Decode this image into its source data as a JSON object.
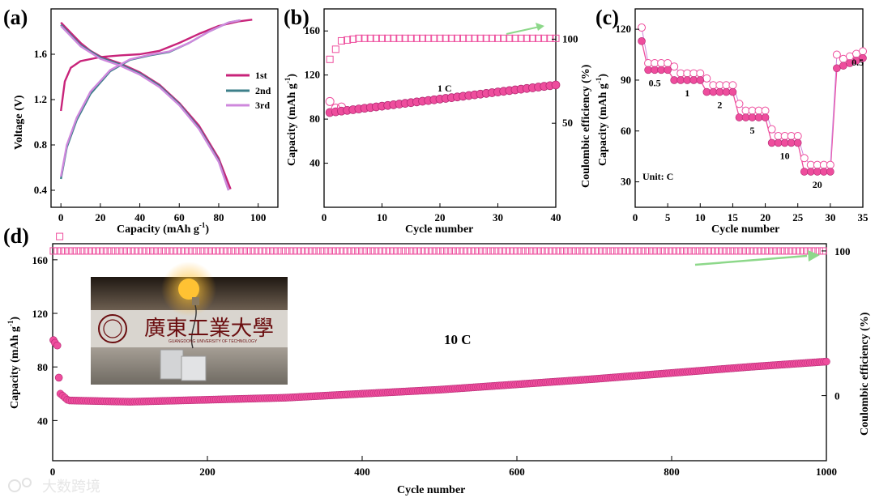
{
  "panels": {
    "a": {
      "letter": "(a)",
      "xlabel": "Capacity (mAh g",
      "xlabel_sup": "-1",
      "xlabel_end": ")",
      "ylabel": "Voltage (V)"
    },
    "b": {
      "letter": "(b)",
      "xlabel": "Cycle number",
      "ylabel": "Capacity (mAh g",
      "ylabel_sup": "-1",
      "ylabel_end": ")",
      "y2label": "Coulombic efficiency (%)",
      "rate_label": "1 C"
    },
    "c": {
      "letter": "(c)",
      "xlabel": "Cycle number",
      "ylabel": "Capacity (mAh g",
      "ylabel_sup": "-1",
      "ylabel_end": ")",
      "unit_label": "Unit: C"
    },
    "d": {
      "letter": "(d)",
      "xlabel": "Cycle number",
      "ylabel": "Capacity (mAh g",
      "ylabel_sup": "-1",
      "ylabel_end": ")",
      "y2label": "Coulombic efficiency (%)",
      "rate_label": "10 C",
      "photo": {
        "school_cn": "廣東工業大學",
        "school_en": "GUANGDONG UNIVERSITY OF TECHNOLOGY"
      }
    }
  },
  "watermark": "大数跨境",
  "colors": {
    "pink": "#ee4d9d",
    "pink_dark": "#b0256f",
    "magenta": "#c8237a",
    "teal": "#3d7f8a",
    "violet": "#cf88dd",
    "green": "#8dd88a"
  },
  "chart_data": [
    {
      "id": "a",
      "type": "line",
      "xlabel": "Capacity (mAh g-1)",
      "ylabel": "Voltage (V)",
      "xlim": [
        -5,
        110
      ],
      "ylim": [
        0.25,
        2.0
      ],
      "xticks": [
        0,
        20,
        40,
        60,
        80,
        100
      ],
      "yticks": [
        0.4,
        0.8,
        1.2,
        1.6
      ],
      "legend": [
        "1st",
        "2nd",
        "3rd"
      ],
      "legend_position": "right",
      "series": [
        {
          "name": "1st",
          "color": "#c8237a",
          "discharge": [
            [
              0,
              1.88
            ],
            [
              5,
              1.79
            ],
            [
              10,
              1.7
            ],
            [
              15,
              1.63
            ],
            [
              20,
              1.58
            ],
            [
              30,
              1.52
            ],
            [
              40,
              1.44
            ],
            [
              50,
              1.33
            ],
            [
              60,
              1.17
            ],
            [
              70,
              0.97
            ],
            [
              80,
              0.68
            ],
            [
              86,
              0.41
            ]
          ],
          "charge": [
            [
              0,
              1.1
            ],
            [
              2,
              1.36
            ],
            [
              5,
              1.48
            ],
            [
              10,
              1.54
            ],
            [
              20,
              1.575
            ],
            [
              30,
              1.59
            ],
            [
              40,
              1.6
            ],
            [
              50,
              1.63
            ],
            [
              60,
              1.7
            ],
            [
              70,
              1.78
            ],
            [
              80,
              1.85
            ],
            [
              90,
              1.89
            ],
            [
              97,
              1.905
            ]
          ]
        },
        {
          "name": "2nd",
          "color": "#3d7f8a",
          "discharge": [
            [
              0,
              1.86
            ],
            [
              5,
              1.77
            ],
            [
              10,
              1.68
            ],
            [
              20,
              1.57
            ],
            [
              30,
              1.51
            ],
            [
              40,
              1.43
            ],
            [
              50,
              1.32
            ],
            [
              60,
              1.16
            ],
            [
              70,
              0.95
            ],
            [
              80,
              0.66
            ],
            [
              85,
              0.4
            ]
          ],
          "charge": [
            [
              0,
              0.5
            ],
            [
              3,
              0.78
            ],
            [
              8,
              1.02
            ],
            [
              15,
              1.25
            ],
            [
              25,
              1.45
            ],
            [
              35,
              1.55
            ],
            [
              45,
              1.59
            ],
            [
              55,
              1.62
            ],
            [
              65,
              1.7
            ],
            [
              75,
              1.8
            ],
            [
              85,
              1.88
            ],
            [
              91,
              1.9
            ]
          ]
        },
        {
          "name": "3rd",
          "color": "#cf88dd",
          "discharge": [
            [
              0,
              1.85
            ],
            [
              5,
              1.76
            ],
            [
              10,
              1.67
            ],
            [
              20,
              1.56
            ],
            [
              30,
              1.5
            ],
            [
              40,
              1.42
            ],
            [
              50,
              1.31
            ],
            [
              60,
              1.15
            ],
            [
              70,
              0.94
            ],
            [
              80,
              0.65
            ],
            [
              85,
              0.4
            ]
          ],
          "charge": [
            [
              0,
              0.52
            ],
            [
              3,
              0.8
            ],
            [
              8,
              1.04
            ],
            [
              15,
              1.27
            ],
            [
              25,
              1.46
            ],
            [
              35,
              1.555
            ],
            [
              45,
              1.595
            ],
            [
              55,
              1.625
            ],
            [
              65,
              1.7
            ],
            [
              75,
              1.8
            ],
            [
              85,
              1.88
            ],
            [
              91,
              1.9
            ]
          ]
        }
      ]
    },
    {
      "id": "b",
      "type": "scatter",
      "xlabel": "Cycle number",
      "ylabel": "Capacity (mAh g-1)",
      "y2label": "Coulombic efficiency (%)",
      "xlim": [
        0,
        40
      ],
      "ylim": [
        0,
        180
      ],
      "y2lim": [
        0,
        118
      ],
      "xticks": [
        0,
        10,
        20,
        30,
        40
      ],
      "yticks": [
        40,
        80,
        120,
        160
      ],
      "y2ticks": [
        50,
        100
      ],
      "annotation": "1 C",
      "series": [
        {
          "name": "Capacity",
          "marker": "filled-circle",
          "x_start": 1,
          "x_end": 40,
          "y_start": 86,
          "y_end": 111,
          "first_open": 96
        },
        {
          "name": "Coulombic efficiency",
          "marker": "open-square",
          "x_start": 1,
          "x_end": 40,
          "first": 88,
          "second": 94,
          "plateau": 100.5
        }
      ]
    },
    {
      "id": "c",
      "type": "scatter",
      "xlabel": "Cycle number",
      "ylabel": "Capacity (mAh g-1)",
      "xlim": [
        0,
        35
      ],
      "ylim": [
        15,
        132
      ],
      "xticks": [
        0,
        5,
        10,
        15,
        20,
        25,
        30,
        35
      ],
      "yticks": [
        30,
        60,
        90,
        120
      ],
      "rate_steps": [
        {
          "rate": "0.5",
          "cycles": [
            1,
            5
          ],
          "capacity": 96
        },
        {
          "rate": "1",
          "cycles": [
            6,
            10
          ],
          "capacity": 90
        },
        {
          "rate": "2",
          "cycles": [
            11,
            15
          ],
          "capacity": 83
        },
        {
          "rate": "5",
          "cycles": [
            16,
            20
          ],
          "capacity": 68
        },
        {
          "rate": "10",
          "cycles": [
            21,
            25
          ],
          "capacity": 53
        },
        {
          "rate": "20",
          "cycles": [
            26,
            30
          ],
          "capacity": 36
        },
        {
          "rate": "0.5",
          "cycles": [
            31,
            35
          ],
          "capacity": 100
        }
      ],
      "first_cycle": 113,
      "annotation": "Unit: C"
    },
    {
      "id": "d",
      "type": "scatter",
      "xlabel": "Cycle number",
      "ylabel": "Capacity (mAh g-1)",
      "y2label": "Coulombic efficiency (%)",
      "xlim": [
        0,
        1000
      ],
      "ylim": [
        10,
        172
      ],
      "y2lim": [
        -45,
        105
      ],
      "xticks": [
        0,
        200,
        400,
        600,
        800,
        1000
      ],
      "yticks": [
        40,
        80,
        120,
        160
      ],
      "y2ticks": [
        0,
        100
      ],
      "annotation": "10 C",
      "series": [
        {
          "name": "Capacity",
          "marker": "filled-circle",
          "initial": [
            [
              1,
              100
            ],
            [
              3,
              98
            ],
            [
              6,
              96
            ],
            [
              8,
              72
            ],
            [
              10,
              60
            ],
            [
              20,
              55
            ],
            [
              100,
              54
            ],
            [
              300,
              57
            ],
            [
              500,
              63
            ],
            [
              700,
              71
            ],
            [
              900,
              80
            ],
            [
              1000,
              84
            ]
          ]
        },
        {
          "name": "Coulombic efficiency",
          "marker": "open-square",
          "first": 110,
          "plateau": 100
        }
      ]
    }
  ]
}
